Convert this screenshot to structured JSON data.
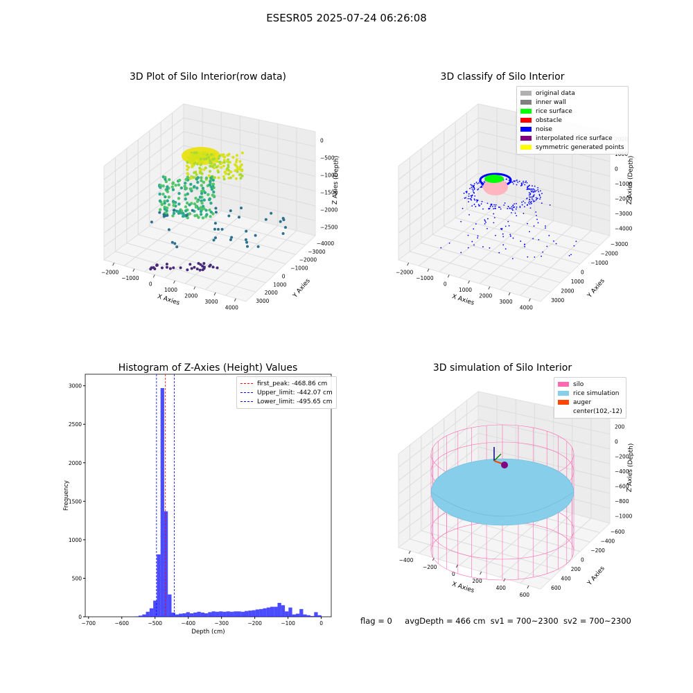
{
  "suptitle": "ESESR05 2025-07-24 06:26:08",
  "colors": {
    "original": "#b0b0b0",
    "inner_wall": "#808080",
    "rice_surface": "#00ff00",
    "obstacle": "#ff0000",
    "noise": "#0000ff",
    "interpolated": "#800080",
    "symmetric": "#ffff00",
    "silo": "#ff69b4",
    "rice_sim": "#87ceeb",
    "auger": "#ff4500",
    "hist": "#0000ff"
  },
  "plot1": {
    "title": "3D Plot of Silo Interior(row data)",
    "xlabel": "X Axies",
    "ylabel": "Y Axies",
    "zlabel": "Z Axies (Depth)",
    "xticks": [
      "−2000",
      "−1000",
      "0",
      "1000",
      "2000",
      "3000",
      "4000"
    ],
    "yticks": [
      "−4000",
      "−3000",
      "−2000",
      "−1000",
      "0",
      "1000",
      "2000",
      "3000"
    ],
    "zticks": [
      "0",
      "−500",
      "−1000",
      "−1500",
      "−2000",
      "−2500"
    ]
  },
  "plot2": {
    "title": "3D classify of Silo Interior",
    "xlabel": "X Axies",
    "ylabel": "Y Axies",
    "zlabel": "Z Axies (Depth)",
    "xticks": [
      "−2000",
      "−1000",
      "0",
      "1000",
      "2000",
      "3000",
      "4000"
    ],
    "yticks": [
      "−3000",
      "−2000",
      "−1000",
      "0",
      "1000",
      "2000",
      "3000"
    ],
    "zticks": [
      "2000",
      "1000",
      "0",
      "−1000",
      "−2000",
      "−3000",
      "−4000"
    ],
    "legend": [
      {
        "label": "original data",
        "color": "#b0b0b0"
      },
      {
        "label": "inner wall",
        "color": "#808080"
      },
      {
        "label": "rice surface",
        "color": "#00ff00"
      },
      {
        "label": "obstacle",
        "color": "#ff0000"
      },
      {
        "label": "noise",
        "color": "#0000ff"
      },
      {
        "label": "interpolated rice surface",
        "color": "#800080"
      },
      {
        "label": "symmetric generated points",
        "color": "#ffff00"
      }
    ]
  },
  "chart_data": [
    {
      "type": "histogram",
      "title": "Histogram of Z-Axies (Height) Values",
      "xlabel": "Depth (cm)",
      "ylabel": "Frequency",
      "xlim": [
        -710,
        30
      ],
      "ylim": [
        0,
        3150
      ],
      "xticks": [
        -700,
        -600,
        -500,
        -400,
        -300,
        -200,
        -100,
        0
      ],
      "yticks": [
        0,
        500,
        1000,
        1500,
        2000,
        2500,
        3000
      ],
      "bin_width": 11,
      "bins": [
        {
          "x": -555,
          "v": 5
        },
        {
          "x": -544,
          "v": 15
        },
        {
          "x": -533,
          "v": 30
        },
        {
          "x": -522,
          "v": 65
        },
        {
          "x": -511,
          "v": 110
        },
        {
          "x": -500,
          "v": 210
        },
        {
          "x": -489,
          "v": 810
        },
        {
          "x": -478,
          "v": 2970
        },
        {
          "x": -467,
          "v": 1370
        },
        {
          "x": -456,
          "v": 290
        },
        {
          "x": -445,
          "v": 55
        },
        {
          "x": -434,
          "v": 30
        },
        {
          "x": -423,
          "v": 40
        },
        {
          "x": -412,
          "v": 45
        },
        {
          "x": -401,
          "v": 60
        },
        {
          "x": -390,
          "v": 45
        },
        {
          "x": -379,
          "v": 55
        },
        {
          "x": -368,
          "v": 65
        },
        {
          "x": -357,
          "v": 55
        },
        {
          "x": -346,
          "v": 45
        },
        {
          "x": -335,
          "v": 60
        },
        {
          "x": -324,
          "v": 70
        },
        {
          "x": -313,
          "v": 65
        },
        {
          "x": -302,
          "v": 70
        },
        {
          "x": -291,
          "v": 65
        },
        {
          "x": -280,
          "v": 70
        },
        {
          "x": -269,
          "v": 65
        },
        {
          "x": -258,
          "v": 70
        },
        {
          "x": -247,
          "v": 70
        },
        {
          "x": -236,
          "v": 65
        },
        {
          "x": -225,
          "v": 75
        },
        {
          "x": -214,
          "v": 80
        },
        {
          "x": -203,
          "v": 85
        },
        {
          "x": -192,
          "v": 95
        },
        {
          "x": -181,
          "v": 100
        },
        {
          "x": -170,
          "v": 110
        },
        {
          "x": -159,
          "v": 120
        },
        {
          "x": -148,
          "v": 130
        },
        {
          "x": -137,
          "v": 130
        },
        {
          "x": -126,
          "v": 180
        },
        {
          "x": -115,
          "v": 150
        },
        {
          "x": -104,
          "v": 70
        },
        {
          "x": -93,
          "v": 120
        },
        {
          "x": -82,
          "v": 30
        },
        {
          "x": -71,
          "v": 40
        },
        {
          "x": -60,
          "v": 100
        },
        {
          "x": -49,
          "v": 30
        },
        {
          "x": -38,
          "v": 20
        },
        {
          "x": -27,
          "v": 10
        },
        {
          "x": -16,
          "v": 60
        },
        {
          "x": -5,
          "v": 20
        }
      ],
      "lines": [
        {
          "label": "first_peak: -468.86 cm",
          "x": -468.86,
          "color": "#ff0000"
        },
        {
          "label": "Upper_limit: -442.07 cm",
          "x": -442.07,
          "color": "#0000ff"
        },
        {
          "label": "Lower_limit: -495.65 cm",
          "x": -495.65,
          "color": "#0000ff"
        }
      ],
      "legend_position": "top-right"
    }
  ],
  "plot4": {
    "title": "3D simulation of Silo Interior",
    "xlabel": "X Axies",
    "ylabel": "Y Axies",
    "zlabel": "Z Axies (Depth)",
    "xticks": [
      "−400",
      "−200",
      "0",
      "200",
      "400",
      "600"
    ],
    "yticks": [
      "−600",
      "−400",
      "−200",
      "0",
      "200",
      "400",
      "600"
    ],
    "zticks": [
      "200",
      "0",
      "−200",
      "−400",
      "−600",
      "−800",
      "−1000"
    ],
    "legend": [
      {
        "label": "silo",
        "color": "#ff69b4"
      },
      {
        "label": "rice simulation",
        "color": "#87ceeb"
      },
      {
        "label": "auger",
        "color": "#ff4500"
      },
      {
        "label": "center(102,-12)",
        "color": ""
      }
    ]
  },
  "footer": {
    "flag": "flag = 0",
    "avg": "avgDepth = 466 cm",
    "sv1": "sv1 = 700~2300",
    "sv2": "sv2 = 700~2300"
  }
}
